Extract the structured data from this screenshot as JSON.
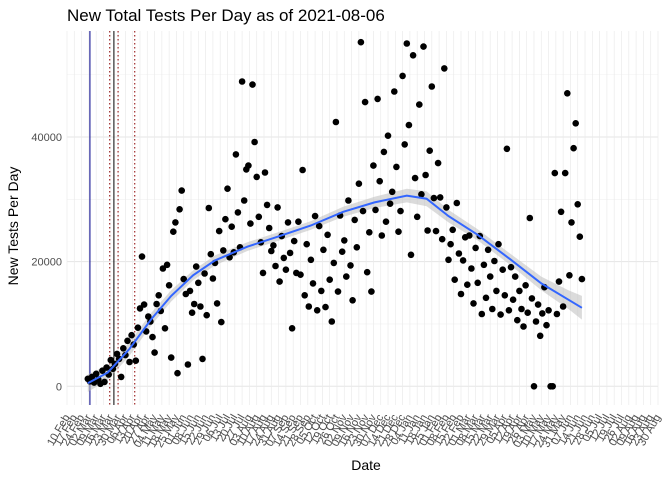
{
  "chart_data": {
    "type": "scatter",
    "title": "New Total Tests Per Day as of 2021-08-06",
    "xlabel": "Date",
    "ylabel": "New Tests Per Day",
    "x_range": [
      "2020-02-10",
      "2021-08-30"
    ],
    "ylim": [
      -3000,
      57000
    ],
    "y_ticks": [
      0,
      20000,
      40000
    ],
    "y_tick_labels": [
      "0",
      "20000",
      "40000"
    ],
    "x_tick_labels": [
      "10 Feb",
      "17 Feb",
      "24 Feb",
      "02 Mar",
      "09 Mar",
      "16 Mar",
      "23 Mar",
      "30 Mar",
      "06 Apr",
      "13 Apr",
      "20 Apr",
      "27 Apr",
      "04 May",
      "11 May",
      "18 May",
      "25 May",
      "01 Jun",
      "08 Jun",
      "15 Jun",
      "22 Jun",
      "29 Jun",
      "06 Jul",
      "13 Jul",
      "20 Jul",
      "27 Jul",
      "03 Aug",
      "10 Aug",
      "17 Aug",
      "24 Aug",
      "31 Aug",
      "07 Sep",
      "14 Sep",
      "21 Sep",
      "28 Sep",
      "05 Oct",
      "12 Oct",
      "19 Oct",
      "26 Oct",
      "02 Nov",
      "09 Nov",
      "16 Nov",
      "23 Nov",
      "30 Nov",
      "07 Dec",
      "14 Dec",
      "21 Dec",
      "28 Dec",
      "04 Jan",
      "11 Jan",
      "18 Jan",
      "25 Jan",
      "01 Feb",
      "08 Feb",
      "15 Feb",
      "22 Feb",
      "01 Mar",
      "08 Mar",
      "15 Mar",
      "22 Mar",
      "29 Mar",
      "05 Apr",
      "12 Apr",
      "19 Apr",
      "26 Apr",
      "03 May",
      "10 May",
      "17 May",
      "24 May",
      "31 May",
      "07 Jun",
      "14 Jun",
      "21 Jun",
      "28 Jun",
      "05 Jul",
      "12 Jul",
      "19 Jul",
      "26 Jul",
      "02 Aug",
      "09 Aug",
      "16 Aug",
      "23 Aug",
      "30 Aug"
    ],
    "vertical_lines": [
      {
        "date": "2020-03-03",
        "color": "#00008b",
        "style": "solid"
      },
      {
        "date": "2020-03-22",
        "color": "#8b0000",
        "style": "dotted"
      },
      {
        "date": "2020-03-26",
        "color": "#000000",
        "style": "solid"
      },
      {
        "date": "2020-03-30",
        "color": "#8b0000",
        "style": "dotted"
      },
      {
        "date": "2020-04-15",
        "color": "#8b0000",
        "style": "dotted"
      }
    ],
    "points_color": "#000000",
    "trend_color": "#3366ff",
    "band_color": "#bebebe",
    "grid": true,
    "points": [
      [
        "2020-03-01",
        1200
      ],
      [
        "2020-03-03",
        800
      ],
      [
        "2020-03-05",
        1500
      ],
      [
        "2020-03-07",
        600
      ],
      [
        "2020-03-09",
        2000
      ],
      [
        "2020-03-11",
        1100
      ],
      [
        "2020-03-13",
        400
      ],
      [
        "2020-03-15",
        2500
      ],
      [
        "2020-03-17",
        700
      ],
      [
        "2020-03-19",
        3000
      ],
      [
        "2020-03-21",
        1900
      ],
      [
        "2020-03-23",
        4200
      ],
      [
        "2020-03-25",
        2800
      ],
      [
        "2020-03-27",
        3600
      ],
      [
        "2020-03-29",
        5200
      ],
      [
        "2020-03-31",
        4400
      ],
      [
        "2020-04-02",
        1500
      ],
      [
        "2020-04-04",
        6100
      ],
      [
        "2020-04-06",
        5000
      ],
      [
        "2020-04-08",
        7300
      ],
      [
        "2020-04-10",
        3900
      ],
      [
        "2020-04-12",
        8200
      ],
      [
        "2020-04-14",
        6700
      ],
      [
        "2020-04-16",
        4100
      ],
      [
        "2020-04-18",
        9400
      ],
      [
        "2020-04-20",
        12500
      ],
      [
        "2020-04-22",
        20800
      ],
      [
        "2020-04-24",
        13100
      ],
      [
        "2020-04-26",
        8800
      ],
      [
        "2020-04-28",
        11200
      ],
      [
        "2020-04-30",
        10400
      ],
      [
        "2020-05-02",
        7900
      ],
      [
        "2020-05-04",
        5400
      ],
      [
        "2020-05-06",
        13200
      ],
      [
        "2020-05-08",
        14600
      ],
      [
        "2020-05-10",
        12100
      ],
      [
        "2020-05-12",
        18900
      ],
      [
        "2020-05-14",
        9300
      ],
      [
        "2020-05-16",
        19500
      ],
      [
        "2020-05-18",
        16200
      ],
      [
        "2020-05-20",
        4600
      ],
      [
        "2020-05-22",
        24800
      ],
      [
        "2020-05-24",
        26300
      ],
      [
        "2020-05-26",
        2100
      ],
      [
        "2020-05-28",
        28400
      ],
      [
        "2020-05-30",
        31400
      ],
      [
        "2020-06-01",
        17200
      ],
      [
        "2020-06-03",
        14800
      ],
      [
        "2020-06-05",
        3500
      ],
      [
        "2020-06-07",
        15300
      ],
      [
        "2020-06-09",
        11800
      ],
      [
        "2020-06-11",
        13200
      ],
      [
        "2020-06-13",
        19200
      ],
      [
        "2020-06-15",
        16600
      ],
      [
        "2020-06-17",
        12800
      ],
      [
        "2020-06-19",
        4400
      ],
      [
        "2020-06-21",
        18100
      ],
      [
        "2020-06-23",
        11400
      ],
      [
        "2020-06-25",
        28600
      ],
      [
        "2020-06-27",
        21200
      ],
      [
        "2020-06-29",
        17300
      ],
      [
        "2020-07-01",
        19800
      ],
      [
        "2020-07-03",
        13300
      ],
      [
        "2020-07-05",
        24900
      ],
      [
        "2020-07-07",
        10300
      ],
      [
        "2020-07-09",
        21800
      ],
      [
        "2020-07-11",
        26800
      ],
      [
        "2020-07-13",
        31700
      ],
      [
        "2020-07-15",
        20700
      ],
      [
        "2020-07-17",
        25600
      ],
      [
        "2020-07-19",
        21500
      ],
      [
        "2020-07-21",
        37200
      ],
      [
        "2020-07-23",
        27900
      ],
      [
        "2020-07-25",
        22300
      ],
      [
        "2020-07-27",
        48900
      ],
      [
        "2020-07-29",
        29800
      ],
      [
        "2020-07-31",
        34800
      ],
      [
        "2020-08-02",
        35400
      ],
      [
        "2020-08-04",
        26100
      ],
      [
        "2020-08-06",
        48400
      ],
      [
        "2020-08-08",
        39200
      ],
      [
        "2020-08-10",
        33600
      ],
      [
        "2020-08-12",
        27200
      ],
      [
        "2020-08-14",
        23100
      ],
      [
        "2020-08-16",
        18200
      ],
      [
        "2020-08-18",
        34300
      ],
      [
        "2020-08-20",
        29100
      ],
      [
        "2020-08-22",
        25400
      ],
      [
        "2020-08-24",
        21700
      ],
      [
        "2020-08-26",
        22600
      ],
      [
        "2020-08-28",
        19300
      ],
      [
        "2020-08-30",
        28700
      ],
      [
        "2020-09-01",
        16800
      ],
      [
        "2020-09-03",
        24100
      ],
      [
        "2020-09-05",
        20600
      ],
      [
        "2020-09-07",
        18700
      ],
      [
        "2020-09-09",
        26300
      ],
      [
        "2020-09-11",
        21400
      ],
      [
        "2020-09-13",
        9300
      ],
      [
        "2020-09-15",
        23300
      ],
      [
        "2020-09-17",
        18200
      ],
      [
        "2020-09-19",
        26400
      ],
      [
        "2020-09-21",
        17900
      ],
      [
        "2020-09-23",
        34700
      ],
      [
        "2020-09-25",
        14600
      ],
      [
        "2020-09-27",
        22800
      ],
      [
        "2020-09-29",
        12800
      ],
      [
        "2020-10-01",
        20300
      ],
      [
        "2020-10-03",
        16500
      ],
      [
        "2020-10-05",
        27300
      ],
      [
        "2020-10-07",
        12200
      ],
      [
        "2020-10-09",
        25700
      ],
      [
        "2020-10-11",
        15300
      ],
      [
        "2020-10-13",
        21900
      ],
      [
        "2020-10-15",
        12700
      ],
      [
        "2020-10-17",
        24300
      ],
      [
        "2020-10-19",
        17100
      ],
      [
        "2020-10-21",
        10400
      ],
      [
        "2020-10-23",
        19800
      ],
      [
        "2020-10-25",
        42400
      ],
      [
        "2020-10-27",
        15200
      ],
      [
        "2020-10-29",
        27400
      ],
      [
        "2020-10-31",
        21600
      ],
      [
        "2020-11-02",
        23400
      ],
      [
        "2020-11-04",
        17600
      ],
      [
        "2020-11-06",
        29800
      ],
      [
        "2020-11-08",
        19400
      ],
      [
        "2020-11-10",
        13800
      ],
      [
        "2020-11-12",
        26700
      ],
      [
        "2020-11-14",
        22300
      ],
      [
        "2020-11-16",
        32500
      ],
      [
        "2020-11-18",
        55200
      ],
      [
        "2020-11-20",
        28100
      ],
      [
        "2020-11-22",
        45600
      ],
      [
        "2020-11-24",
        18300
      ],
      [
        "2020-11-26",
        24700
      ],
      [
        "2020-11-28",
        15200
      ],
      [
        "2020-11-30",
        35400
      ],
      [
        "2020-12-02",
        28300
      ],
      [
        "2020-12-04",
        46100
      ],
      [
        "2020-12-06",
        32900
      ],
      [
        "2020-12-08",
        24200
      ],
      [
        "2020-12-10",
        37600
      ],
      [
        "2020-12-12",
        26400
      ],
      [
        "2020-12-14",
        40200
      ],
      [
        "2020-12-16",
        29300
      ],
      [
        "2020-12-18",
        31200
      ],
      [
        "2020-12-20",
        47300
      ],
      [
        "2020-12-22",
        35200
      ],
      [
        "2020-12-24",
        24800
      ],
      [
        "2020-12-26",
        28100
      ],
      [
        "2020-12-28",
        49800
      ],
      [
        "2020-12-30",
        38800
      ],
      [
        "2021-01-01",
        55000
      ],
      [
        "2021-01-03",
        41900
      ],
      [
        "2021-01-05",
        21100
      ],
      [
        "2021-01-07",
        53100
      ],
      [
        "2021-01-09",
        33400
      ],
      [
        "2021-01-11",
        27200
      ],
      [
        "2021-01-13",
        45200
      ],
      [
        "2021-01-15",
        30800
      ],
      [
        "2021-01-17",
        54500
      ],
      [
        "2021-01-19",
        33900
      ],
      [
        "2021-01-21",
        25000
      ],
      [
        "2021-01-23",
        37800
      ],
      [
        "2021-01-25",
        48100
      ],
      [
        "2021-01-27",
        30200
      ],
      [
        "2021-01-29",
        24900
      ],
      [
        "2021-01-31",
        35800
      ],
      [
        "2021-02-02",
        30300
      ],
      [
        "2021-02-04",
        23600
      ],
      [
        "2021-02-06",
        51000
      ],
      [
        "2021-02-08",
        28700
      ],
      [
        "2021-02-10",
        20300
      ],
      [
        "2021-02-12",
        22800
      ],
      [
        "2021-02-14",
        25100
      ],
      [
        "2021-02-16",
        17100
      ],
      [
        "2021-02-18",
        29400
      ],
      [
        "2021-02-20",
        21300
      ],
      [
        "2021-02-22",
        14800
      ],
      [
        "2021-02-24",
        20200
      ],
      [
        "2021-02-26",
        23900
      ],
      [
        "2021-02-28",
        16300
      ],
      [
        "2021-03-02",
        24200
      ],
      [
        "2021-03-04",
        18900
      ],
      [
        "2021-03-06",
        13300
      ],
      [
        "2021-03-08",
        22200
      ],
      [
        "2021-03-10",
        16600
      ],
      [
        "2021-03-12",
        24100
      ],
      [
        "2021-03-14",
        11600
      ],
      [
        "2021-03-16",
        19500
      ],
      [
        "2021-03-18",
        14200
      ],
      [
        "2021-03-20",
        21900
      ],
      [
        "2021-03-22",
        17600
      ],
      [
        "2021-03-24",
        12400
      ],
      [
        "2021-03-26",
        20100
      ],
      [
        "2021-03-28",
        15300
      ],
      [
        "2021-03-30",
        22800
      ],
      [
        "2021-04-01",
        11500
      ],
      [
        "2021-04-03",
        18700
      ],
      [
        "2021-04-05",
        14600
      ],
      [
        "2021-04-07",
        38100
      ],
      [
        "2021-04-09",
        12200
      ],
      [
        "2021-04-11",
        19100
      ],
      [
        "2021-04-13",
        13900
      ],
      [
        "2021-04-15",
        17600
      ],
      [
        "2021-04-17",
        10600
      ],
      [
        "2021-04-19",
        15300
      ],
      [
        "2021-04-21",
        12400
      ],
      [
        "2021-04-23",
        9600
      ],
      [
        "2021-04-25",
        16200
      ],
      [
        "2021-04-27",
        11800
      ],
      [
        "2021-04-29",
        27000
      ],
      [
        "2021-05-01",
        14100
      ],
      [
        "2021-05-03",
        0
      ],
      [
        "2021-05-05",
        10400
      ],
      [
        "2021-05-07",
        13100
      ],
      [
        "2021-05-09",
        8100
      ],
      [
        "2021-05-11",
        11700
      ],
      [
        "2021-05-13",
        15900
      ],
      [
        "2021-05-15",
        9800
      ],
      [
        "2021-05-17",
        12200
      ],
      [
        "2021-05-19",
        0
      ],
      [
        "2021-05-21",
        0
      ],
      [
        "2021-05-23",
        34200
      ],
      [
        "2021-05-25",
        11600
      ],
      [
        "2021-05-27",
        16800
      ],
      [
        "2021-05-29",
        28000
      ],
      [
        "2021-05-31",
        12800
      ],
      [
        "2021-06-02",
        34200
      ],
      [
        "2021-06-04",
        47000
      ],
      [
        "2021-06-06",
        17800
      ],
      [
        "2021-06-08",
        26300
      ],
      [
        "2021-06-10",
        38200
      ],
      [
        "2021-06-12",
        42200
      ],
      [
        "2021-06-14",
        29200
      ],
      [
        "2021-06-16",
        24000
      ],
      [
        "2021-06-18",
        17200
      ]
    ],
    "trend": [
      [
        "2020-03-01",
        500
      ],
      [
        "2020-03-20",
        2200
      ],
      [
        "2020-04-10",
        6000
      ],
      [
        "2020-05-01",
        10800
      ],
      [
        "2020-05-20",
        14500
      ],
      [
        "2020-06-10",
        17800
      ],
      [
        "2020-07-01",
        20200
      ],
      [
        "2020-08-01",
        22400
      ],
      [
        "2020-09-01",
        24100
      ],
      [
        "2020-10-01",
        25800
      ],
      [
        "2020-11-01",
        28000
      ],
      [
        "2020-12-01",
        29500
      ],
      [
        "2021-01-01",
        30600
      ],
      [
        "2021-01-20",
        30100
      ],
      [
        "2021-02-10",
        27300
      ],
      [
        "2021-03-10",
        24300
      ],
      [
        "2021-04-10",
        20400
      ],
      [
        "2021-05-10",
        16500
      ],
      [
        "2021-06-05",
        13900
      ],
      [
        "2021-06-18",
        12600
      ]
    ],
    "band_halfwidth": [
      1400,
      1200,
      1100,
      1000,
      900,
      800,
      800,
      700,
      700,
      700,
      800,
      900,
      1100,
      1200,
      1000,
      900,
      900,
      1100,
      1500,
      1900
    ]
  }
}
